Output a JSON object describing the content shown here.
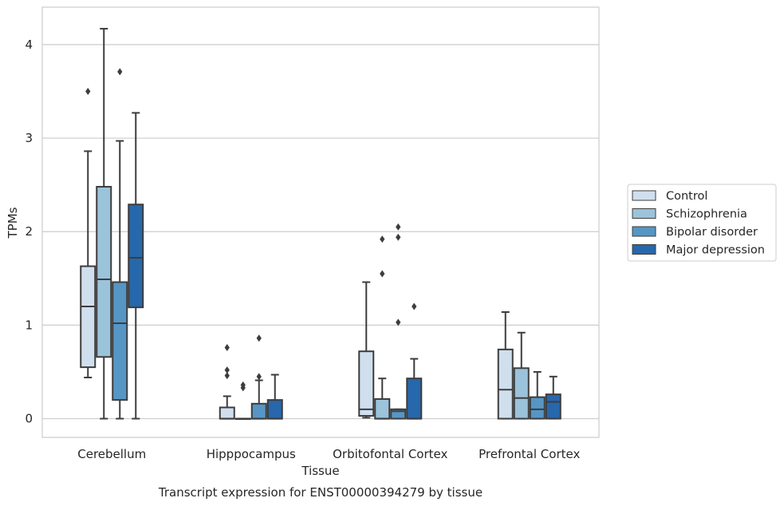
{
  "chart_data": {
    "type": "box",
    "caption": "Transcript expression for ENST00000394279 by tissue",
    "xlabel": "Tissue",
    "ylabel": "TPMs",
    "ylim": [
      -0.2,
      4.4
    ],
    "yticks": [
      0,
      1,
      2,
      3,
      4
    ],
    "grid": true,
    "legend_position": "right-center",
    "categories": [
      "Cerebellum",
      "Hipppocampus",
      "Orbitofontal Cortex",
      "Prefrontal Cortex"
    ],
    "series": [
      {
        "name": "Control",
        "color": "#d0dfee",
        "boxes": [
          {
            "whislo": 0.44,
            "q1": 0.55,
            "med": 1.2,
            "q3": 1.63,
            "whishi": 2.86,
            "fliers": [
              3.5
            ]
          },
          {
            "whislo": 0.0,
            "q1": 0.0,
            "med": 0.0,
            "q3": 0.12,
            "whishi": 0.24,
            "fliers": [
              0.46,
              0.52,
              0.76
            ]
          },
          {
            "whislo": 0.01,
            "q1": 0.03,
            "med": 0.1,
            "q3": 0.72,
            "whishi": 1.46,
            "fliers": []
          },
          {
            "whislo": 0.0,
            "q1": 0.0,
            "med": 0.31,
            "q3": 0.74,
            "whishi": 1.14,
            "fliers": []
          }
        ]
      },
      {
        "name": "Schizophrenia",
        "color": "#9bc3da",
        "boxes": [
          {
            "whislo": 0.0,
            "q1": 0.66,
            "med": 1.49,
            "q3": 2.48,
            "whishi": 4.17,
            "fliers": []
          },
          {
            "whislo": 0.0,
            "q1": 0.0,
            "med": 0.0,
            "q3": 0.0,
            "whishi": 0.0,
            "fliers": [
              0.33,
              0.36
            ]
          },
          {
            "whislo": 0.0,
            "q1": 0.0,
            "med": 0.0,
            "q3": 0.21,
            "whishi": 0.43,
            "fliers": [
              1.55,
              1.92
            ]
          },
          {
            "whislo": 0.0,
            "q1": 0.0,
            "med": 0.22,
            "q3": 0.54,
            "whishi": 0.92,
            "fliers": []
          }
        ]
      },
      {
        "name": "Bipolar disorder",
        "color": "#5696c5",
        "boxes": [
          {
            "whislo": 0.0,
            "q1": 0.2,
            "med": 1.02,
            "q3": 1.46,
            "whishi": 2.97,
            "fliers": [
              3.71
            ]
          },
          {
            "whislo": 0.0,
            "q1": 0.0,
            "med": 0.0,
            "q3": 0.16,
            "whishi": 0.41,
            "fliers": [
              0.45,
              0.86
            ]
          },
          {
            "whislo": 0.0,
            "q1": 0.0,
            "med": 0.08,
            "q3": 0.1,
            "whishi": 0.1,
            "fliers": [
              1.03,
              1.94,
              2.05
            ]
          },
          {
            "whislo": 0.0,
            "q1": 0.0,
            "med": 0.1,
            "q3": 0.23,
            "whishi": 0.5,
            "fliers": []
          }
        ]
      },
      {
        "name": "Major depression",
        "color": "#2767ab",
        "boxes": [
          {
            "whislo": 0.0,
            "q1": 1.19,
            "med": 1.72,
            "q3": 2.29,
            "whishi": 3.27,
            "fliers": []
          },
          {
            "whislo": 0.0,
            "q1": 0.0,
            "med": 0.0,
            "q3": 0.2,
            "whishi": 0.47,
            "fliers": []
          },
          {
            "whislo": 0.0,
            "q1": 0.0,
            "med": 0.0,
            "q3": 0.43,
            "whishi": 0.64,
            "fliers": [
              1.2
            ]
          },
          {
            "whislo": 0.0,
            "q1": 0.0,
            "med": 0.18,
            "q3": 0.26,
            "whishi": 0.45,
            "fliers": []
          }
        ]
      }
    ]
  }
}
